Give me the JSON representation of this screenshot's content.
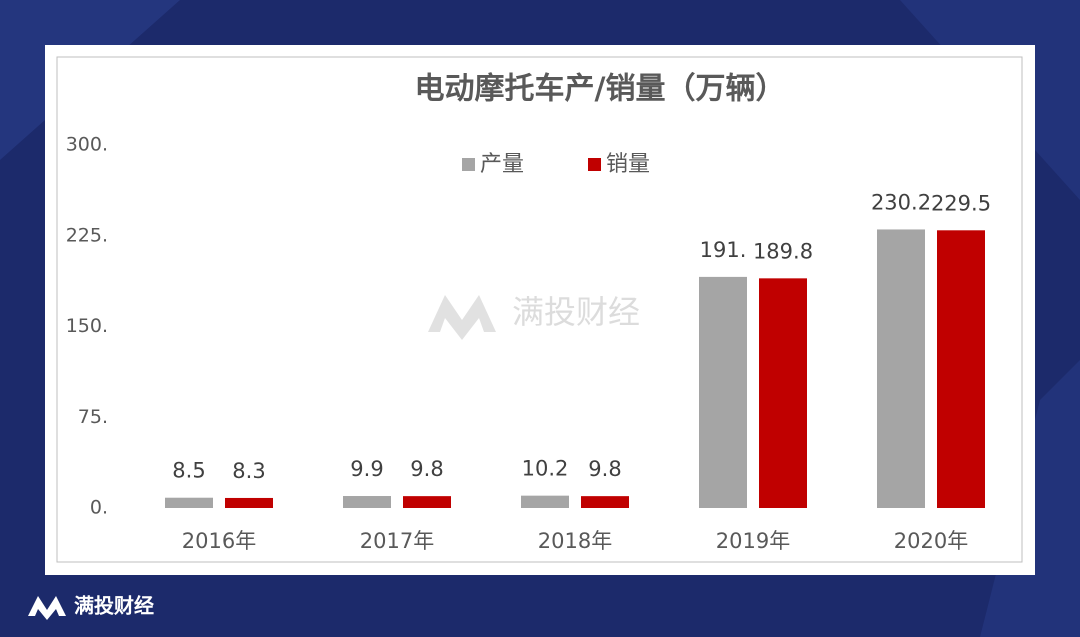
{
  "chart_data": {
    "type": "bar",
    "title": "电动摩托车产/销量（万辆）",
    "categories": [
      "2016年",
      "2017年",
      "2018年",
      "2019年",
      "2020年"
    ],
    "series": [
      {
        "name": "产量",
        "color": "#a5a5a5",
        "values": [
          8.5,
          9.9,
          10.2,
          191,
          230.2
        ],
        "value_labels": [
          "8.5",
          "9.9",
          "10.2",
          "191.",
          "230.2"
        ]
      },
      {
        "name": "销量",
        "color": "#c00000",
        "values": [
          8.3,
          9.8,
          9.8,
          189.8,
          229.5
        ]
      }
    ],
    "ylim": [
      0,
      300
    ],
    "yticks": [
      {
        "value": 0,
        "label": "0."
      },
      {
        "value": 75,
        "label": "75."
      },
      {
        "value": 150,
        "label": "150."
      },
      {
        "value": 225,
        "label": "225."
      },
      {
        "value": 300,
        "label": "300."
      }
    ],
    "grid": false,
    "legend": "top"
  },
  "watermark": "满投财经",
  "brand": "满投财经"
}
